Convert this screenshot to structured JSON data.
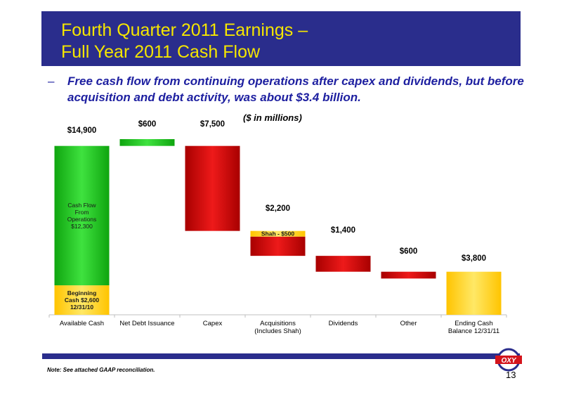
{
  "slide": {
    "title_line1": "Fourth Quarter 2011 Earnings –",
    "title_line2": "Full Year 2011 Cash Flow",
    "bullet_dash": "–",
    "bullet_text": "Free cash flow from continuing operations after capex and dividends, but before acquisition and debt activity, was about $3.4 billion.",
    "units_label": "($ in millions)",
    "note": "Note: See attached GAAP reconciliation.",
    "page_number": "13",
    "logo_text": "OXY"
  },
  "colors": {
    "header_bg": "#2a2d8c",
    "title_text": "#f5e600",
    "green": "#22c622",
    "red": "#cc0000",
    "yellow": "#ffd400"
  },
  "chart_data": {
    "type": "bar",
    "subtype": "waterfall",
    "units": "($ in millions)",
    "ylim": [
      0,
      15500
    ],
    "categories": [
      "Available Cash",
      "Net Debt Issuance",
      "Capex",
      "Acquisitions\n(Includes Shah)",
      "Dividends",
      "Other",
      "Ending Cash\nBalance 12/31/11"
    ],
    "value_labels": [
      "$14,900",
      "$600",
      "$7,500",
      "$2,200",
      "$1,400",
      "$600",
      "$3,800"
    ],
    "bars": [
      {
        "start": 0,
        "end": 14900,
        "segments": [
          {
            "start": 0,
            "end": 2600,
            "color": "yellow",
            "label_lines": [
              "Beginning",
              "Cash $2,600",
              "12/31/10"
            ]
          },
          {
            "start": 2600,
            "end": 14900,
            "color": "green",
            "label_lines": [
              "Cash Flow",
              "From",
              "Operations",
              "$12,300"
            ]
          }
        ]
      },
      {
        "start": 14900,
        "end": 15500,
        "segments": [
          {
            "start": 14900,
            "end": 15500,
            "color": "green"
          }
        ]
      },
      {
        "start": 7400,
        "end": 14900,
        "segments": [
          {
            "start": 7400,
            "end": 14900,
            "color": "red"
          }
        ]
      },
      {
        "start": 5200,
        "end": 7400,
        "segments": [
          {
            "start": 5200,
            "end": 6900,
            "color": "red"
          },
          {
            "start": 6900,
            "end": 7400,
            "color": "yellow",
            "label_lines": [
              "Shah - $500"
            ]
          }
        ]
      },
      {
        "start": 3800,
        "end": 5200,
        "segments": [
          {
            "start": 3800,
            "end": 5200,
            "color": "red"
          }
        ]
      },
      {
        "start": 3200,
        "end": 3800,
        "segments": [
          {
            "start": 3200,
            "end": 3800,
            "color": "red"
          }
        ]
      },
      {
        "start": 0,
        "end": 3800,
        "segments": [
          {
            "start": 0,
            "end": 3800,
            "color": "yellow"
          }
        ]
      }
    ],
    "grid": false,
    "legend": "none"
  }
}
